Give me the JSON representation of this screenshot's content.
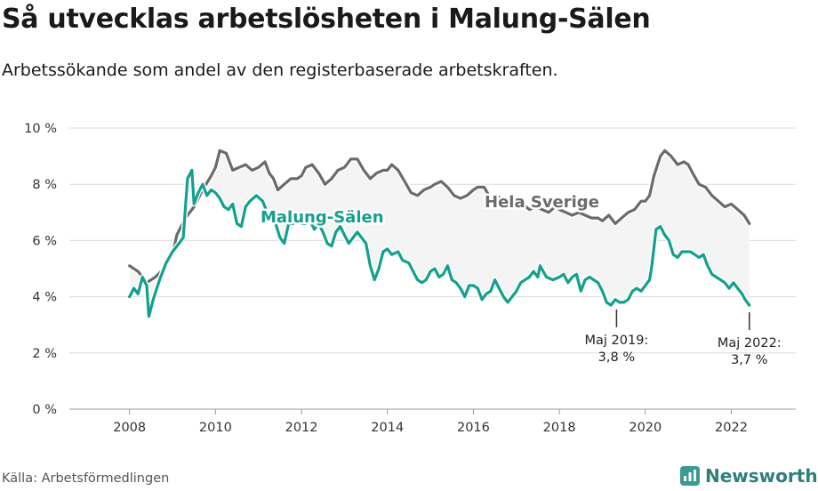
{
  "header": {
    "title": "Så utvecklas arbetslösheten i Malung-Sälen",
    "subtitle": "Arbetssökande som andel av den registerbaserade arbetskraften."
  },
  "footer": {
    "source": "Källa: Arbetsförmedlingen",
    "brand": "Newsworthy",
    "brand_icon": "newsworthy-logo-icon"
  },
  "colors": {
    "local": "#13a08d",
    "national": "#6b6b6b",
    "band": "#f4f4f4",
    "grid": "#dcdcdc"
  },
  "chart_data": {
    "type": "line",
    "x_unit": "year",
    "xlim": [
      2006.6,
      2023.5
    ],
    "ylim": [
      0,
      10
    ],
    "xticks": [
      2008,
      2010,
      2012,
      2014,
      2016,
      2018,
      2020,
      2022
    ],
    "x_tick_labels": [
      "2008",
      "2010",
      "2012",
      "2014",
      "2016",
      "2018",
      "2020",
      "2022"
    ],
    "yticks": [
      0,
      2,
      4,
      6,
      8,
      10
    ],
    "y_tick_labels": [
      "0 %",
      "2 %",
      "4 %",
      "6 %",
      "8 %",
      "10 %"
    ],
    "grid": true,
    "series": [
      {
        "name": "Hela Sverige",
        "color": "#6b6b6b",
        "points": [
          [
            2008.0,
            5.1
          ],
          [
            2008.2,
            4.9
          ],
          [
            2008.4,
            4.5
          ],
          [
            2008.6,
            4.7
          ],
          [
            2008.8,
            5.0
          ],
          [
            2009.0,
            5.5
          ],
          [
            2009.1,
            6.2
          ],
          [
            2009.3,
            6.8
          ],
          [
            2009.5,
            7.2
          ],
          [
            2009.7,
            7.8
          ],
          [
            2009.9,
            8.3
          ],
          [
            2010.0,
            8.6
          ],
          [
            2010.1,
            9.2
          ],
          [
            2010.25,
            9.1
          ],
          [
            2010.4,
            8.5
          ],
          [
            2010.55,
            8.6
          ],
          [
            2010.7,
            8.7
          ],
          [
            2010.85,
            8.5
          ],
          [
            2011.0,
            8.6
          ],
          [
            2011.15,
            8.8
          ],
          [
            2011.25,
            8.4
          ],
          [
            2011.35,
            8.2
          ],
          [
            2011.45,
            7.8
          ],
          [
            2011.6,
            8.0
          ],
          [
            2011.75,
            8.2
          ],
          [
            2011.9,
            8.2
          ],
          [
            2012.0,
            8.3
          ],
          [
            2012.1,
            8.6
          ],
          [
            2012.25,
            8.7
          ],
          [
            2012.4,
            8.4
          ],
          [
            2012.55,
            8.0
          ],
          [
            2012.7,
            8.2
          ],
          [
            2012.85,
            8.5
          ],
          [
            2013.0,
            8.6
          ],
          [
            2013.15,
            8.9
          ],
          [
            2013.3,
            8.9
          ],
          [
            2013.45,
            8.5
          ],
          [
            2013.6,
            8.2
          ],
          [
            2013.75,
            8.4
          ],
          [
            2013.9,
            8.5
          ],
          [
            2014.0,
            8.5
          ],
          [
            2014.1,
            8.7
          ],
          [
            2014.25,
            8.5
          ],
          [
            2014.4,
            8.1
          ],
          [
            2014.55,
            7.7
          ],
          [
            2014.7,
            7.6
          ],
          [
            2014.85,
            7.8
          ],
          [
            2015.0,
            7.9
          ],
          [
            2015.1,
            8.0
          ],
          [
            2015.25,
            8.1
          ],
          [
            2015.4,
            7.9
          ],
          [
            2015.55,
            7.6
          ],
          [
            2015.7,
            7.5
          ],
          [
            2015.85,
            7.6
          ],
          [
            2016.0,
            7.8
          ],
          [
            2016.1,
            7.9
          ],
          [
            2016.25,
            7.9
          ],
          [
            2016.4,
            7.5
          ],
          [
            2016.55,
            7.6
          ],
          [
            2016.7,
            7.4
          ],
          [
            2016.85,
            7.3
          ],
          [
            2017.0,
            7.4
          ],
          [
            2017.15,
            7.3
          ],
          [
            2017.3,
            7.1
          ],
          [
            2017.45,
            7.2
          ],
          [
            2017.6,
            7.1
          ],
          [
            2017.75,
            7.0
          ],
          [
            2017.9,
            7.2
          ],
          [
            2018.0,
            7.1
          ],
          [
            2018.15,
            7.0
          ],
          [
            2018.3,
            6.9
          ],
          [
            2018.45,
            7.0
          ],
          [
            2018.6,
            6.9
          ],
          [
            2018.75,
            6.8
          ],
          [
            2018.9,
            6.8
          ],
          [
            2019.0,
            6.7
          ],
          [
            2019.15,
            6.9
          ],
          [
            2019.3,
            6.6
          ],
          [
            2019.45,
            6.8
          ],
          [
            2019.6,
            7.0
          ],
          [
            2019.75,
            7.1
          ],
          [
            2019.9,
            7.4
          ],
          [
            2020.0,
            7.4
          ],
          [
            2020.1,
            7.6
          ],
          [
            2020.2,
            8.3
          ],
          [
            2020.35,
            9.0
          ],
          [
            2020.45,
            9.2
          ],
          [
            2020.6,
            9.0
          ],
          [
            2020.75,
            8.7
          ],
          [
            2020.9,
            8.8
          ],
          [
            2021.0,
            8.7
          ],
          [
            2021.1,
            8.4
          ],
          [
            2021.25,
            8.0
          ],
          [
            2021.4,
            7.9
          ],
          [
            2021.55,
            7.6
          ],
          [
            2021.7,
            7.4
          ],
          [
            2021.85,
            7.2
          ],
          [
            2022.0,
            7.3
          ],
          [
            2022.15,
            7.1
          ],
          [
            2022.3,
            6.9
          ],
          [
            2022.42,
            6.6
          ]
        ]
      },
      {
        "name": "Malung-Sälen",
        "color": "#13a08d",
        "points": [
          [
            2008.0,
            4.0
          ],
          [
            2008.1,
            4.3
          ],
          [
            2008.2,
            4.1
          ],
          [
            2008.3,
            4.7
          ],
          [
            2008.4,
            4.4
          ],
          [
            2008.45,
            3.3
          ],
          [
            2008.55,
            3.9
          ],
          [
            2008.7,
            4.6
          ],
          [
            2008.85,
            5.2
          ],
          [
            2009.0,
            5.6
          ],
          [
            2009.15,
            5.9
          ],
          [
            2009.25,
            6.1
          ],
          [
            2009.35,
            8.2
          ],
          [
            2009.45,
            8.5
          ],
          [
            2009.5,
            7.3
          ],
          [
            2009.6,
            7.7
          ],
          [
            2009.7,
            8.0
          ],
          [
            2009.8,
            7.6
          ],
          [
            2009.9,
            7.8
          ],
          [
            2010.0,
            7.7
          ],
          [
            2010.1,
            7.5
          ],
          [
            2010.2,
            7.2
          ],
          [
            2010.3,
            7.1
          ],
          [
            2010.4,
            7.3
          ],
          [
            2010.5,
            6.6
          ],
          [
            2010.6,
            6.5
          ],
          [
            2010.7,
            7.2
          ],
          [
            2010.8,
            7.4
          ],
          [
            2010.95,
            7.6
          ],
          [
            2011.1,
            7.4
          ],
          [
            2011.2,
            7.0
          ],
          [
            2011.3,
            6.7
          ],
          [
            2011.4,
            6.6
          ],
          [
            2011.5,
            6.1
          ],
          [
            2011.6,
            5.9
          ],
          [
            2011.7,
            6.6
          ],
          [
            2011.8,
            6.6
          ],
          [
            2011.9,
            6.7
          ],
          [
            2012.0,
            6.6
          ],
          [
            2012.1,
            6.6
          ],
          [
            2012.2,
            6.7
          ],
          [
            2012.3,
            6.4
          ],
          [
            2012.4,
            6.6
          ],
          [
            2012.5,
            6.3
          ],
          [
            2012.6,
            5.9
          ],
          [
            2012.7,
            5.8
          ],
          [
            2012.8,
            6.3
          ],
          [
            2012.9,
            6.5
          ],
          [
            2013.0,
            6.2
          ],
          [
            2013.1,
            5.9
          ],
          [
            2013.2,
            6.1
          ],
          [
            2013.3,
            6.3
          ],
          [
            2013.4,
            6.1
          ],
          [
            2013.5,
            5.9
          ],
          [
            2013.6,
            5.1
          ],
          [
            2013.7,
            4.6
          ],
          [
            2013.8,
            5.0
          ],
          [
            2013.9,
            5.6
          ],
          [
            2014.0,
            5.7
          ],
          [
            2014.1,
            5.5
          ],
          [
            2014.25,
            5.6
          ],
          [
            2014.35,
            5.3
          ],
          [
            2014.5,
            5.2
          ],
          [
            2014.6,
            4.9
          ],
          [
            2014.7,
            4.6
          ],
          [
            2014.8,
            4.5
          ],
          [
            2014.9,
            4.6
          ],
          [
            2015.0,
            4.9
          ],
          [
            2015.1,
            5.0
          ],
          [
            2015.2,
            4.7
          ],
          [
            2015.3,
            4.8
          ],
          [
            2015.4,
            5.1
          ],
          [
            2015.5,
            4.6
          ],
          [
            2015.6,
            4.5
          ],
          [
            2015.7,
            4.3
          ],
          [
            2015.8,
            4.0
          ],
          [
            2015.9,
            4.4
          ],
          [
            2016.0,
            4.4
          ],
          [
            2016.1,
            4.3
          ],
          [
            2016.2,
            3.9
          ],
          [
            2016.3,
            4.1
          ],
          [
            2016.4,
            4.2
          ],
          [
            2016.5,
            4.6
          ],
          [
            2016.6,
            4.3
          ],
          [
            2016.7,
            4.0
          ],
          [
            2016.8,
            3.8
          ],
          [
            2016.9,
            4.0
          ],
          [
            2017.0,
            4.2
          ],
          [
            2017.1,
            4.5
          ],
          [
            2017.2,
            4.6
          ],
          [
            2017.3,
            4.7
          ],
          [
            2017.4,
            4.9
          ],
          [
            2017.5,
            4.7
          ],
          [
            2017.55,
            5.1
          ],
          [
            2017.7,
            4.7
          ],
          [
            2017.85,
            4.6
          ],
          [
            2018.0,
            4.7
          ],
          [
            2018.1,
            4.8
          ],
          [
            2018.2,
            4.5
          ],
          [
            2018.3,
            4.7
          ],
          [
            2018.4,
            4.8
          ],
          [
            2018.5,
            4.2
          ],
          [
            2018.6,
            4.6
          ],
          [
            2018.7,
            4.7
          ],
          [
            2018.8,
            4.6
          ],
          [
            2018.9,
            4.5
          ],
          [
            2019.0,
            4.2
          ],
          [
            2019.1,
            3.8
          ],
          [
            2019.2,
            3.7
          ],
          [
            2019.3,
            3.9
          ],
          [
            2019.4,
            3.8
          ],
          [
            2019.5,
            3.8
          ],
          [
            2019.6,
            3.9
          ],
          [
            2019.7,
            4.2
          ],
          [
            2019.8,
            4.3
          ],
          [
            2019.9,
            4.2
          ],
          [
            2020.0,
            4.4
          ],
          [
            2020.1,
            4.6
          ],
          [
            2020.15,
            5.1
          ],
          [
            2020.25,
            6.4
          ],
          [
            2020.35,
            6.5
          ],
          [
            2020.45,
            6.2
          ],
          [
            2020.55,
            6.0
          ],
          [
            2020.65,
            5.5
          ],
          [
            2020.75,
            5.4
          ],
          [
            2020.85,
            5.6
          ],
          [
            2020.95,
            5.6
          ],
          [
            2021.05,
            5.6
          ],
          [
            2021.15,
            5.5
          ],
          [
            2021.25,
            5.4
          ],
          [
            2021.35,
            5.5
          ],
          [
            2021.45,
            5.1
          ],
          [
            2021.55,
            4.8
          ],
          [
            2021.65,
            4.7
          ],
          [
            2021.75,
            4.6
          ],
          [
            2021.85,
            4.5
          ],
          [
            2021.95,
            4.3
          ],
          [
            2022.05,
            4.5
          ],
          [
            2022.15,
            4.3
          ],
          [
            2022.25,
            4.1
          ],
          [
            2022.32,
            3.9
          ],
          [
            2022.42,
            3.7
          ]
        ]
      }
    ],
    "series_labels": [
      "Hela Sverige",
      "Malung-Sälen"
    ],
    "annotations": [
      {
        "text_line1": "Maj 2019:",
        "text_line2": "3,8 %",
        "x": 2019.33,
        "y": 3.8
      },
      {
        "text_line1": "Maj 2022:",
        "text_line2": "3,7 %",
        "x": 2022.42,
        "y": 3.7
      }
    ]
  }
}
